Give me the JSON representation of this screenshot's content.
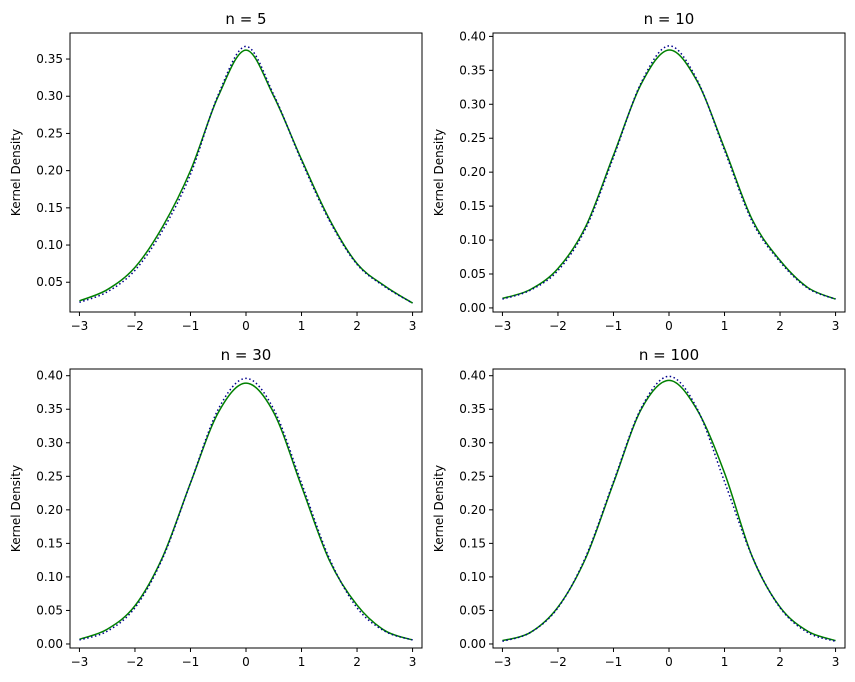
{
  "chart_data": [
    {
      "type": "line",
      "title": "n = 5",
      "xlabel": "",
      "ylabel": "Kernel Density",
      "xlim": [
        -3.17,
        3.17
      ],
      "ylim": [
        0.01,
        0.385
      ],
      "xticks": [
        -3,
        -2,
        -1,
        0,
        1,
        2,
        3
      ],
      "yticks": [
        0.05,
        0.1,
        0.15,
        0.2,
        0.25,
        0.3,
        0.35
      ],
      "ytick_labels": [
        "0.05",
        "0.10",
        "0.15",
        "0.20",
        "0.25",
        "0.30",
        "0.35"
      ],
      "grid": false,
      "series": [
        {
          "color": "#008000",
          "style": "solid",
          "x": [
            -3,
            -2.5,
            -2,
            -1.5,
            -1,
            -0.5,
            0,
            0.5,
            1,
            1.5,
            2,
            2.5,
            3
          ],
          "y": [
            0.025,
            0.04,
            0.07,
            0.125,
            0.2,
            0.3,
            0.362,
            0.3,
            0.215,
            0.135,
            0.075,
            0.045,
            0.022
          ]
        },
        {
          "color": "#00008b",
          "style": "dotted",
          "x": [
            -3,
            -2.5,
            -2,
            -1.5,
            -1,
            -0.5,
            0,
            0.5,
            1,
            1.5,
            2,
            2.5,
            3
          ],
          "y": [
            0.023,
            0.037,
            0.066,
            0.12,
            0.195,
            0.302,
            0.367,
            0.302,
            0.213,
            0.133,
            0.074,
            0.044,
            0.022
          ]
        }
      ]
    },
    {
      "type": "line",
      "title": "n = 10",
      "xlabel": "",
      "ylabel": "Kernel Density",
      "xlim": [
        -3.17,
        3.17
      ],
      "ylim": [
        -0.006,
        0.405
      ],
      "xticks": [
        -3,
        -2,
        -1,
        0,
        1,
        2,
        3
      ],
      "yticks": [
        0.0,
        0.05,
        0.1,
        0.15,
        0.2,
        0.25,
        0.3,
        0.35,
        0.4
      ],
      "ytick_labels": [
        "0.00",
        "0.05",
        "0.10",
        "0.15",
        "0.20",
        "0.25",
        "0.30",
        "0.35",
        "0.40"
      ],
      "grid": false,
      "series": [
        {
          "color": "#008000",
          "style": "solid",
          "x": [
            -3,
            -2.5,
            -2,
            -1.5,
            -1,
            -0.5,
            0,
            0.5,
            1,
            1.5,
            2,
            2.5,
            3
          ],
          "y": [
            0.014,
            0.027,
            0.058,
            0.12,
            0.225,
            0.33,
            0.38,
            0.335,
            0.235,
            0.13,
            0.07,
            0.03,
            0.013
          ]
        },
        {
          "color": "#00008b",
          "style": "dotted",
          "x": [
            -3,
            -2.5,
            -2,
            -1.5,
            -1,
            -0.5,
            0,
            0.5,
            1,
            1.5,
            2,
            2.5,
            3
          ],
          "y": [
            0.013,
            0.026,
            0.055,
            0.117,
            0.222,
            0.332,
            0.386,
            0.337,
            0.232,
            0.127,
            0.068,
            0.029,
            0.013
          ]
        }
      ]
    },
    {
      "type": "line",
      "title": "n = 30",
      "xlabel": "",
      "ylabel": "Kernel Density",
      "xlim": [
        -3.17,
        3.17
      ],
      "ylim": [
        -0.006,
        0.41
      ],
      "xticks": [
        -3,
        -2,
        -1,
        0,
        1,
        2,
        3
      ],
      "yticks": [
        0.0,
        0.05,
        0.1,
        0.15,
        0.2,
        0.25,
        0.3,
        0.35,
        0.4
      ],
      "ytick_labels": [
        "0.00",
        "0.05",
        "0.10",
        "0.15",
        "0.20",
        "0.25",
        "0.30",
        "0.35",
        "0.40"
      ],
      "grid": false,
      "series": [
        {
          "color": "#008000",
          "style": "solid",
          "x": [
            -3,
            -2.5,
            -2,
            -1.5,
            -1,
            -0.5,
            0,
            0.5,
            1,
            1.5,
            2,
            2.5,
            3
          ],
          "y": [
            0.007,
            0.022,
            0.057,
            0.13,
            0.24,
            0.345,
            0.389,
            0.345,
            0.235,
            0.125,
            0.058,
            0.02,
            0.006
          ]
        },
        {
          "color": "#00008b",
          "style": "dotted",
          "x": [
            -3,
            -2.5,
            -2,
            -1.5,
            -1,
            -0.5,
            0,
            0.5,
            1,
            1.5,
            2,
            2.5,
            3
          ],
          "y": [
            0.006,
            0.019,
            0.054,
            0.128,
            0.24,
            0.35,
            0.396,
            0.35,
            0.24,
            0.128,
            0.054,
            0.019,
            0.006
          ]
        }
      ]
    },
    {
      "type": "line",
      "title": "n = 100",
      "xlabel": "",
      "ylabel": "Kernel Density",
      "xlim": [
        -3.17,
        3.17
      ],
      "ylim": [
        -0.006,
        0.41
      ],
      "xticks": [
        -3,
        -2,
        -1,
        0,
        1,
        2,
        3
      ],
      "yticks": [
        0.0,
        0.05,
        0.1,
        0.15,
        0.2,
        0.25,
        0.3,
        0.35,
        0.4
      ],
      "ytick_labels": [
        "0.00",
        "0.05",
        "0.10",
        "0.15",
        "0.20",
        "0.25",
        "0.30",
        "0.35",
        "0.40"
      ],
      "grid": false,
      "series": [
        {
          "color": "#008000",
          "style": "solid",
          "x": [
            -3,
            -2.5,
            -2,
            -1.5,
            -1,
            -0.5,
            0,
            0.5,
            1,
            1.5,
            2,
            2.5,
            3
          ],
          "y": [
            0.005,
            0.017,
            0.055,
            0.128,
            0.24,
            0.35,
            0.393,
            0.35,
            0.255,
            0.13,
            0.055,
            0.019,
            0.005
          ]
        },
        {
          "color": "#00008b",
          "style": "dotted",
          "x": [
            -3,
            -2.5,
            -2,
            -1.5,
            -1,
            -0.5,
            0,
            0.5,
            1,
            1.5,
            2,
            2.5,
            3
          ],
          "y": [
            0.004,
            0.017,
            0.054,
            0.13,
            0.242,
            0.352,
            0.399,
            0.352,
            0.242,
            0.13,
            0.054,
            0.017,
            0.004
          ]
        }
      ]
    }
  ]
}
